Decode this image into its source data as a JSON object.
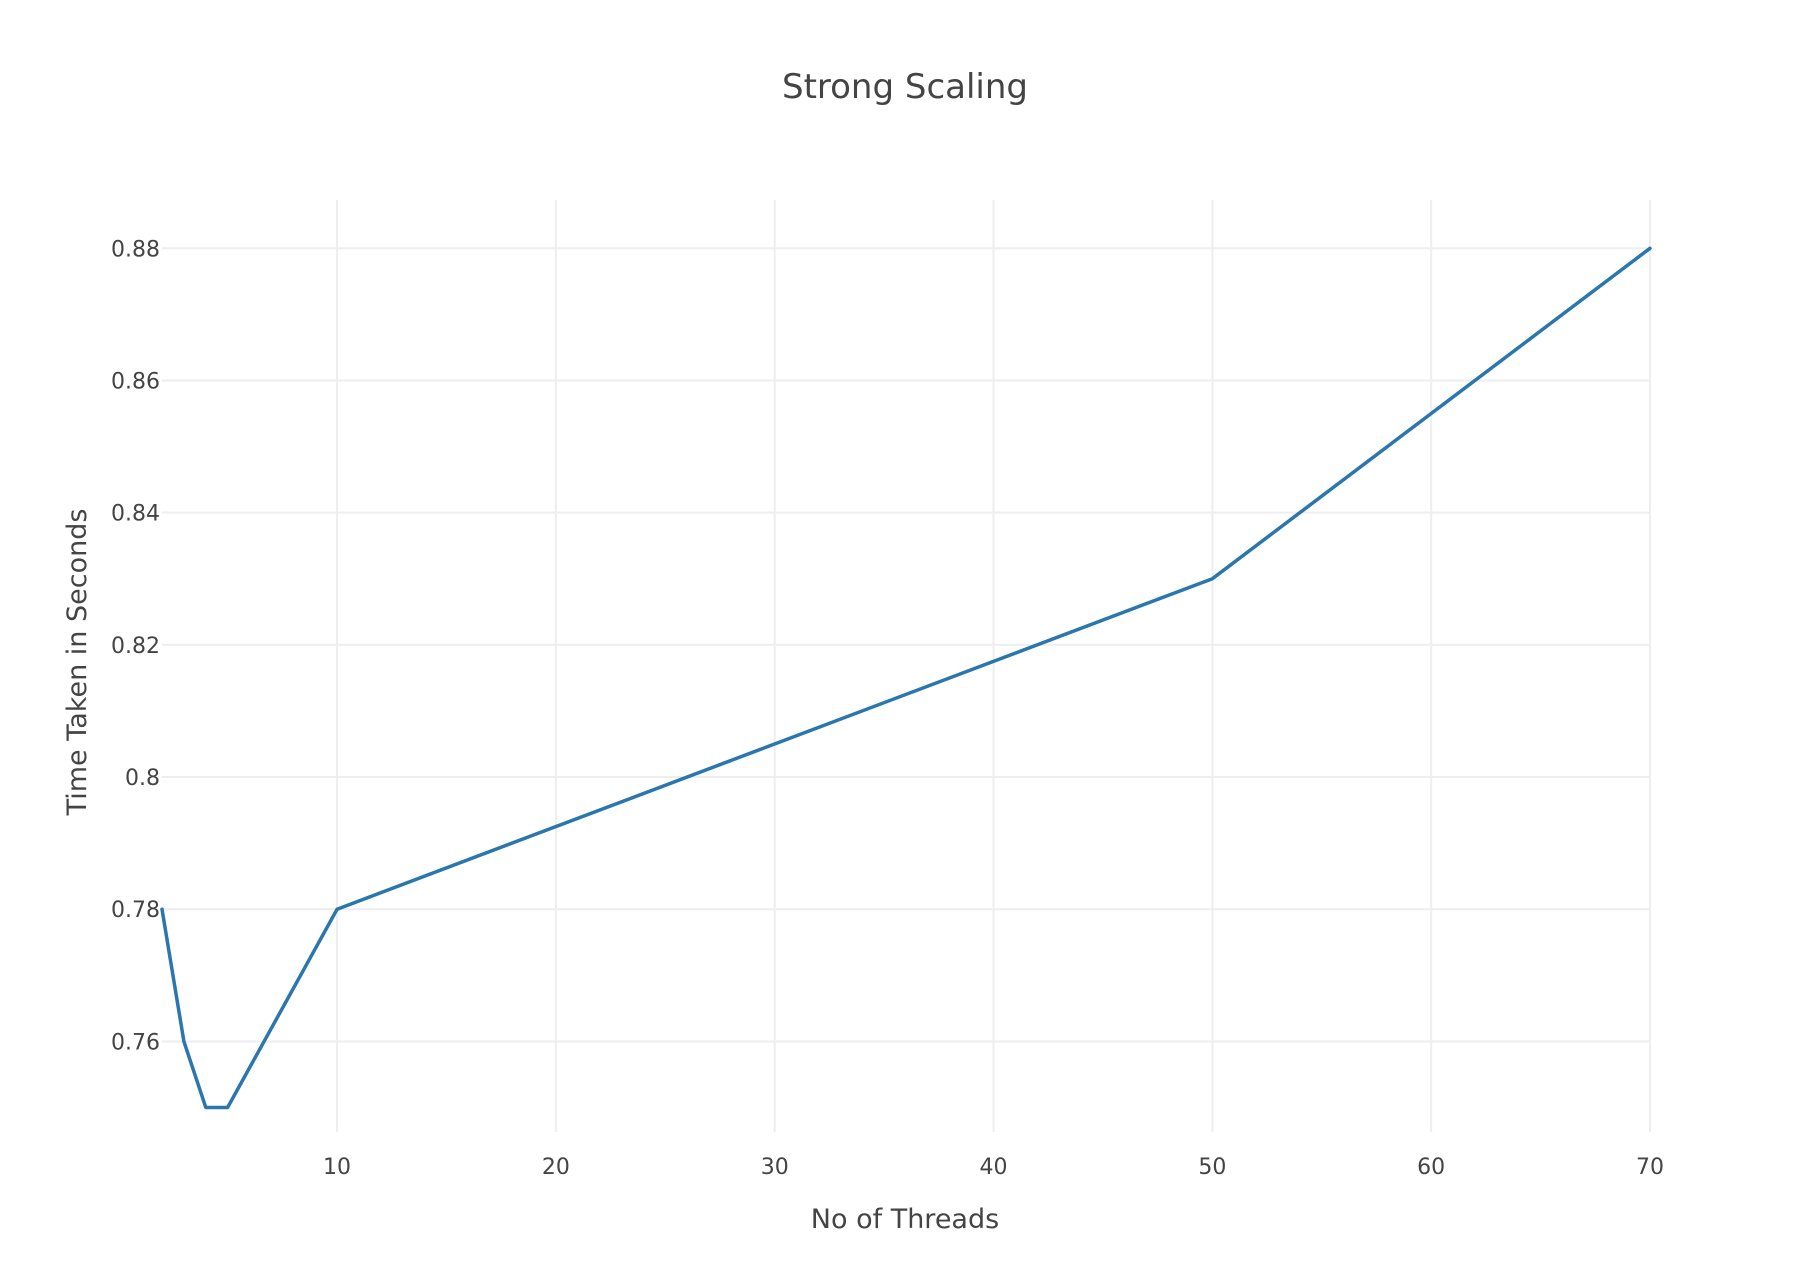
{
  "chart_data": {
    "type": "line",
    "title": "Strong Scaling",
    "xlabel": "No of Threads",
    "ylabel": "Time Taken in Seconds",
    "xlim": [
      2,
      70
    ],
    "ylim": [
      0.7463,
      0.8873
    ],
    "x_ticks": [
      10,
      20,
      30,
      40,
      50,
      60,
      70
    ],
    "x_tick_labels": [
      "10",
      "20",
      "30",
      "40",
      "50",
      "60",
      "70"
    ],
    "y_ticks": [
      0.76,
      0.78,
      0.8,
      0.82,
      0.84,
      0.86,
      0.88
    ],
    "y_tick_labels": [
      "0.76",
      "0.78",
      "0.8",
      "0.82",
      "0.84",
      "0.86",
      "0.88"
    ],
    "grid": true,
    "legend": "none",
    "series": [
      {
        "color": "#2a76ad",
        "x": [
          2,
          3,
          4,
          5,
          10,
          50,
          70
        ],
        "y": [
          0.78,
          0.76,
          0.75,
          0.75,
          0.78,
          0.83,
          0.88
        ]
      }
    ]
  }
}
